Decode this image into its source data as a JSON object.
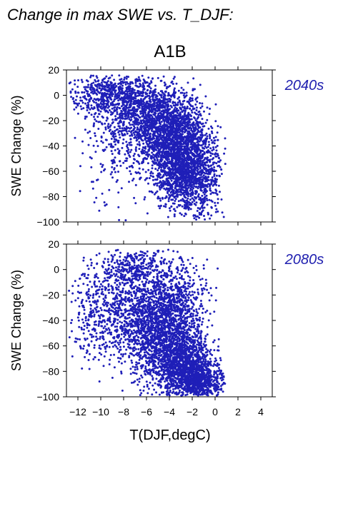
{
  "figure": {
    "title": "Change in max SWE vs. T_DJF:",
    "scenario": "A1B",
    "xlabel": "T(DJF,degC)",
    "ylabel": "SWE Change (%)"
  },
  "colors": {
    "points": "#1f1fb8",
    "axis": "#000000"
  },
  "chart_data": [
    {
      "type": "scatter",
      "panel_label": "2040s",
      "ylabel": "SWE Change (%)",
      "xlim": [
        -13,
        5
      ],
      "ylim": [
        -100,
        20
      ],
      "yticks": [
        20,
        0,
        -20,
        -40,
        -60,
        -80,
        -100
      ],
      "xticks": [
        -12,
        -10,
        -8,
        -6,
        -4,
        -2,
        0,
        2,
        4
      ],
      "xtick_labels_shown": false,
      "grid": false,
      "clusters": [
        {
          "cx": -9.5,
          "cy": 0,
          "sx": 1.8,
          "sy": 8,
          "n": 450
        },
        {
          "cx": -6.5,
          "cy": -12,
          "sx": 1.8,
          "sy": 14,
          "n": 700
        },
        {
          "cx": -4.5,
          "cy": -28,
          "sx": 1.6,
          "sy": 18,
          "n": 1100
        },
        {
          "cx": -3.0,
          "cy": -45,
          "sx": 1.3,
          "sy": 18,
          "n": 1200
        },
        {
          "cx": -2.5,
          "cy": -68,
          "sx": 1.2,
          "sy": 12,
          "n": 600
        },
        {
          "cx": -9.0,
          "cy": -40,
          "sx": 1.5,
          "sy": 25,
          "n": 200
        },
        {
          "cx": -0.8,
          "cy": -60,
          "sx": 0.8,
          "sy": 20,
          "n": 200
        }
      ]
    },
    {
      "type": "scatter",
      "panel_label": "2080s",
      "ylabel": "SWE Change (%)",
      "xlim": [
        -13,
        5
      ],
      "ylim": [
        -100,
        20
      ],
      "yticks": [
        20,
        0,
        -20,
        -40,
        -60,
        -80,
        -100
      ],
      "xticks": [
        -12,
        -10,
        -8,
        -6,
        -4,
        -2,
        0,
        2,
        4
      ],
      "xtick_labels": [
        "−12",
        "−10",
        "−8",
        "−6",
        "−4",
        "−2",
        "0",
        "2",
        "4"
      ],
      "xlabel": "T(DJF,degC)",
      "grid": false,
      "clusters": [
        {
          "cx": -7.0,
          "cy": 0,
          "sx": 1.5,
          "sy": 8,
          "n": 350
        },
        {
          "cx": -9.5,
          "cy": -35,
          "sx": 1.8,
          "sy": 18,
          "n": 500
        },
        {
          "cx": -6.0,
          "cy": -40,
          "sx": 1.6,
          "sy": 20,
          "n": 900
        },
        {
          "cx": -4.0,
          "cy": -55,
          "sx": 1.5,
          "sy": 20,
          "n": 1200
        },
        {
          "cx": -2.5,
          "cy": -80,
          "sx": 1.2,
          "sy": 12,
          "n": 1100
        },
        {
          "cx": -1.0,
          "cy": -90,
          "sx": 0.9,
          "sy": 8,
          "n": 400
        },
        {
          "cx": -3.0,
          "cy": -20,
          "sx": 1.3,
          "sy": 15,
          "n": 300
        }
      ]
    }
  ]
}
